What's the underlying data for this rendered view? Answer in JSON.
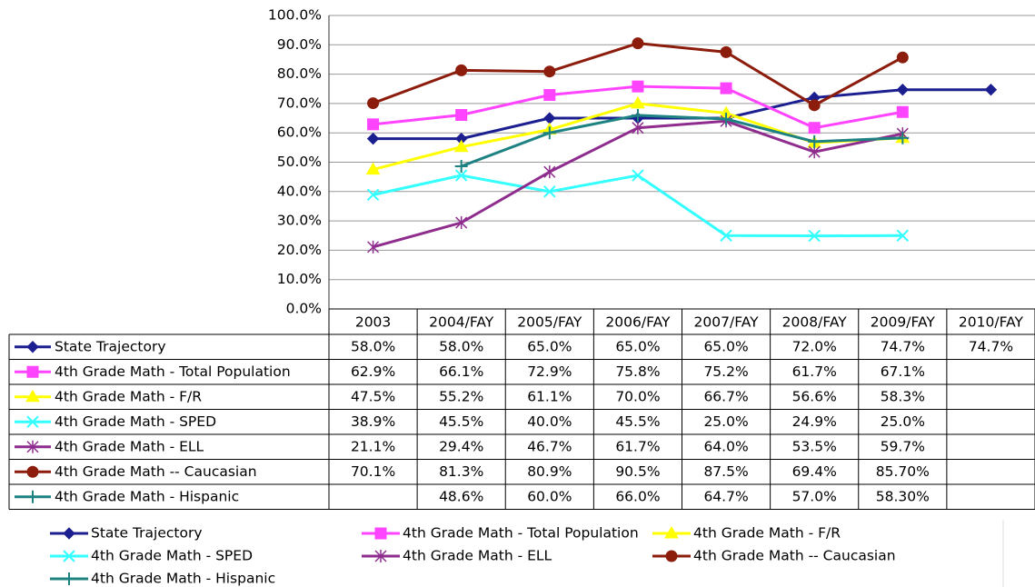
{
  "chart_data": {
    "type": "line",
    "categories": [
      "2003",
      "2004/FAY",
      "2005/FAY",
      "2006/FAY",
      "2007/FAY",
      "2008/FAY",
      "2009/FAY",
      "2010/FAY"
    ],
    "ylim": [
      0,
      100
    ],
    "yticks": [
      {
        "value": 0,
        "label": "0.0%"
      },
      {
        "value": 10,
        "label": "10.0%"
      },
      {
        "value": 20,
        "label": "20.0%"
      },
      {
        "value": 30,
        "label": "30.0%"
      },
      {
        "value": 40,
        "label": "40.0%"
      },
      {
        "value": 50,
        "label": "50.0%"
      },
      {
        "value": 60,
        "label": "60.0%"
      },
      {
        "value": 70,
        "label": "70.0%"
      },
      {
        "value": 80,
        "label": "80.0%"
      },
      {
        "value": 90,
        "label": "90.0%"
      },
      {
        "value": 100,
        "label": "100.0%"
      }
    ],
    "grid": true,
    "series": [
      {
        "name": "State Trajectory",
        "color": "#1c1f8f",
        "marker": "diamond",
        "values": [
          58.0,
          58.0,
          65.0,
          65.0,
          65.0,
          72.0,
          74.7,
          74.7
        ],
        "value_labels": [
          "58.0%",
          "58.0%",
          "65.0%",
          "65.0%",
          "65.0%",
          "72.0%",
          "74.7%",
          "74.7%"
        ]
      },
      {
        "name": "4th Grade Math - Total Population",
        "color": "#ff44ff",
        "marker": "square",
        "values": [
          62.9,
          66.1,
          72.9,
          75.8,
          75.2,
          61.7,
          67.1,
          null
        ],
        "value_labels": [
          "62.9%",
          "66.1%",
          "72.9%",
          "75.8%",
          "75.2%",
          "61.7%",
          "67.1%",
          null
        ]
      },
      {
        "name": "4th Grade Math - F/R",
        "color": "#ffff00",
        "marker": "triangle",
        "values": [
          47.5,
          55.2,
          61.1,
          70.0,
          66.7,
          56.6,
          58.3,
          null
        ],
        "value_labels": [
          "47.5%",
          "55.2%",
          "61.1%",
          "70.0%",
          "66.7%",
          "56.6%",
          "58.3%",
          null
        ]
      },
      {
        "name": "4th Grade Math - SPED",
        "color": "#33ffff",
        "marker": "x",
        "values": [
          38.9,
          45.5,
          40.0,
          45.5,
          25.0,
          24.9,
          25.0,
          null
        ],
        "value_labels": [
          "38.9%",
          "45.5%",
          "40.0%",
          "45.5%",
          "25.0%",
          "24.9%",
          "25.0%",
          null
        ]
      },
      {
        "name": "4th Grade Math - ELL",
        "color": "#8e2d8e",
        "marker": "asterisk",
        "values": [
          21.1,
          29.4,
          46.7,
          61.7,
          64.0,
          53.5,
          59.7,
          null
        ],
        "value_labels": [
          "21.1%",
          "29.4%",
          "46.7%",
          "61.7%",
          "64.0%",
          "53.5%",
          "59.7%",
          null
        ]
      },
      {
        "name": "4th Grade Math -- Caucasian",
        "color": "#8c1c0c",
        "marker": "circle",
        "values": [
          70.1,
          81.3,
          80.9,
          90.5,
          87.5,
          69.4,
          85.7,
          null
        ],
        "value_labels": [
          "70.1%",
          "81.3%",
          "80.9%",
          "90.5%",
          "87.5%",
          "69.4%",
          "85.70%",
          null
        ]
      },
      {
        "name": "4th Grade Math - Hispanic",
        "color": "#1e8282",
        "marker": "plus",
        "values": [
          null,
          48.6,
          60.0,
          66.0,
          64.7,
          57.0,
          58.3,
          null
        ],
        "value_labels": [
          null,
          "48.6%",
          "60.0%",
          "66.0%",
          "64.7%",
          "57.0%",
          "58.30%",
          null
        ]
      }
    ]
  }
}
